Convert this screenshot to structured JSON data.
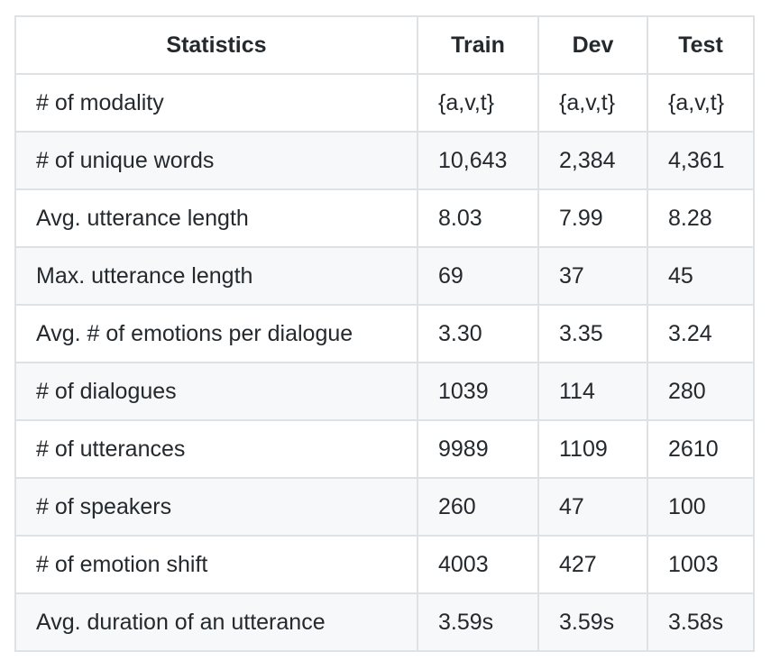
{
  "table": {
    "headers": [
      "Statistics",
      "Train",
      "Dev",
      "Test"
    ],
    "rows": [
      [
        "# of modality",
        "{a,v,t}",
        "{a,v,t}",
        "{a,v,t}"
      ],
      [
        "# of unique words",
        "10,643",
        "2,384",
        "4,361"
      ],
      [
        "Avg. utterance length",
        "8.03",
        "7.99",
        "8.28"
      ],
      [
        "Max. utterance length",
        "69",
        "37",
        "45"
      ],
      [
        "Avg. # of emotions per dialogue",
        "3.30",
        "3.35",
        "3.24"
      ],
      [
        "# of dialogues",
        "1039",
        "114",
        "280"
      ],
      [
        "# of utterances",
        "9989",
        "1109",
        "2610"
      ],
      [
        "# of speakers",
        "260",
        "47",
        "100"
      ],
      [
        "# of emotion shift",
        "4003",
        "427",
        "1003"
      ],
      [
        "Avg. duration of an utterance",
        "3.59s",
        "3.59s",
        "3.58s"
      ]
    ]
  },
  "colors": {
    "border": "#dfe2e5",
    "stripe": "#f6f8fa",
    "text": "#24292e"
  }
}
